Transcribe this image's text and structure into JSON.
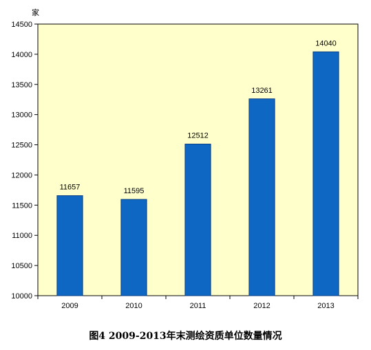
{
  "chart_data": {
    "type": "bar",
    "title": "",
    "caption": "图4   2009-2013年末测绘资质单位数量情况",
    "ylabel": "家",
    "xlabel": "",
    "categories": [
      "2009",
      "2010",
      "2011",
      "2012",
      "2013"
    ],
    "values": [
      11657,
      11595,
      12512,
      13261,
      14040
    ],
    "data_labels": [
      "11657",
      "11595",
      "12512",
      "13261",
      "14040"
    ],
    "ylim": [
      10000,
      14500
    ],
    "yticks": [
      10000,
      10500,
      11000,
      11500,
      12000,
      12500,
      13000,
      13500,
      14000,
      14500
    ],
    "ytick_labels": [
      "10000",
      "10500",
      "11000",
      "11500",
      "12000",
      "12500",
      "13000",
      "13500",
      "14000",
      "14500"
    ],
    "grid": false,
    "legend": "none",
    "colors": {
      "plot_background": "#ffffcc",
      "bar_fill": "#0f67c4",
      "bar_stroke": "#0b3f82",
      "axis": "#000000"
    }
  }
}
